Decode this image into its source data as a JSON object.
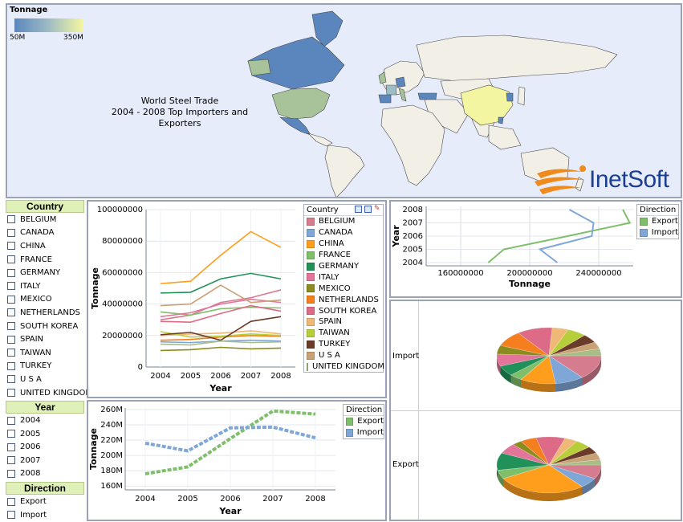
{
  "map": {
    "legend_title": "Tonnage",
    "legend_min": "50M",
    "legend_max": "350M",
    "title_lines": [
      "World Steel Trade",
      "2004 - 2008 Top Importers and",
      "Exporters"
    ],
    "brand": "InetSoft",
    "colors": {
      "ocean": "#e6ecfa",
      "land": "#f2efe6",
      "low": "#5b86bd",
      "mid": "#9ebcc5",
      "high": "#f4f5a0"
    }
  },
  "filters": {
    "country": {
      "title": "Country",
      "items": [
        "BELGIUM",
        "CANADA",
        "CHINA",
        "FRANCE",
        "GERMANY",
        "ITALY",
        "MEXICO",
        "NETHERLANDS",
        "SOUTH KOREA",
        "SPAIN",
        "TAIWAN",
        "TURKEY",
        "U S A",
        "UNITED KINGDOM"
      ]
    },
    "year": {
      "title": "Year",
      "items": [
        "2004",
        "2005",
        "2006",
        "2007",
        "2008"
      ]
    },
    "direction": {
      "title": "Direction",
      "items": [
        "Export",
        "Import"
      ]
    }
  },
  "chart_data": [
    {
      "id": "country-tonnage",
      "type": "line",
      "xlabel": "Year",
      "ylabel": "Tonnage",
      "x": [
        "2004",
        "2005",
        "2006",
        "2007",
        "2008"
      ],
      "ylim": [
        0,
        100000000
      ],
      "yticks": [
        "0",
        "20000000",
        "40000000",
        "60000000",
        "80000000",
        "100000000"
      ],
      "legend_title": "Country",
      "legend_position": "right",
      "series": [
        {
          "name": "BELGIUM",
          "color": "#d57c8f",
          "values": [
            30000000,
            33000000,
            41000000,
            44000000,
            49000000
          ]
        },
        {
          "name": "CANADA",
          "color": "#7ea6d6",
          "values": [
            16000000,
            15500000,
            16500000,
            17000000,
            16500000
          ]
        },
        {
          "name": "CHINA",
          "color": "#ff9d1c",
          "values": [
            53000000,
            54500000,
            71000000,
            86000000,
            76000000
          ]
        },
        {
          "name": "FRANCE",
          "color": "#7fbf6a",
          "values": [
            35000000,
            33000000,
            37000000,
            38000000,
            37500000
          ]
        },
        {
          "name": "GERMANY",
          "color": "#21915a",
          "values": [
            47000000,
            47500000,
            56000000,
            59500000,
            56000000
          ]
        },
        {
          "name": "ITALY",
          "color": "#e3749a",
          "values": [
            32000000,
            34500000,
            40000000,
            43000000,
            41000000
          ]
        },
        {
          "name": "MEXICO",
          "color": "#8b8b1e",
          "values": [
            10500000,
            11000000,
            12500000,
            11500000,
            12000000
          ]
        },
        {
          "name": "NETHERLANDS",
          "color": "#f57f1e",
          "values": [
            17000000,
            17500000,
            19000000,
            20000000,
            19500000
          ]
        },
        {
          "name": "SOUTH KOREA",
          "color": "#dd6b87",
          "values": [
            29000000,
            28500000,
            34000000,
            39000000,
            35500000
          ]
        },
        {
          "name": "SPAIN",
          "color": "#f0b876",
          "values": [
            20000000,
            21000000,
            21500000,
            23000000,
            21000000
          ]
        },
        {
          "name": "TAIWAN",
          "color": "#b7ce3b",
          "values": [
            22500000,
            19000000,
            19500000,
            21000000,
            20000000
          ]
        },
        {
          "name": "TURKEY",
          "color": "#6b3b2a",
          "values": [
            20500000,
            22000000,
            17000000,
            29000000,
            32000000
          ]
        },
        {
          "name": "U S A",
          "color": "#c8a275",
          "values": [
            39000000,
            40000000,
            52000000,
            41000000,
            42500000
          ]
        },
        {
          "name": "UNITED KINGDOM",
          "color": "#a8be86",
          "values": [
            14500000,
            14000000,
            16500000,
            15500000,
            16000000
          ]
        }
      ]
    },
    {
      "id": "direction-tonnage",
      "type": "line",
      "xlabel": "Year",
      "ylabel": "Tonnage",
      "x": [
        "2004",
        "2005",
        "2006",
        "2007",
        "2008"
      ],
      "ylim": [
        155000000,
        262000000
      ],
      "yticks": [
        "160M",
        "180M",
        "200M",
        "220M",
        "240M",
        "260M"
      ],
      "legend_title": "Direction",
      "legend_position": "right",
      "series": [
        {
          "name": "Export",
          "color": "#7fbf6a",
          "values": [
            176000000,
            185000000,
            222000000,
            258000000,
            254000000
          ]
        },
        {
          "name": "Import",
          "color": "#7ea6d6",
          "values": [
            216000000,
            206000000,
            236000000,
            237000000,
            223000000
          ]
        }
      ]
    },
    {
      "id": "year-vs-tonnage",
      "type": "line",
      "xlabel": "Tonnage",
      "ylabel": "Year",
      "xlim": [
        140000000,
        260000000
      ],
      "xticks": [
        "160000000",
        "200000000",
        "240000000"
      ],
      "yticks": [
        "2004",
        "2005",
        "2006",
        "2007",
        "2008"
      ],
      "legend_title": "Direction",
      "legend_position": "right",
      "series": [
        {
          "name": "Export",
          "color": "#7fbf6a",
          "points": [
            [
              176000000,
              2004
            ],
            [
              185000000,
              2005
            ],
            [
              222000000,
              2006
            ],
            [
              258000000,
              2007
            ],
            [
              254000000,
              2008
            ]
          ]
        },
        {
          "name": "Import",
          "color": "#7ea6d6",
          "points": [
            [
              216000000,
              2004
            ],
            [
              206000000,
              2005
            ],
            [
              236000000,
              2006
            ],
            [
              237000000,
              2007
            ],
            [
              223000000,
              2008
            ]
          ]
        }
      ]
    },
    {
      "id": "direction-pies",
      "type": "pie",
      "rows": [
        {
          "label": "Import",
          "values": [
            14,
            9,
            11,
            4,
            6,
            7,
            5,
            9,
            11,
            5,
            6,
            5,
            4,
            4
          ],
          "colors": [
            "#d57c8f",
            "#7ea6d6",
            "#ff9d1c",
            "#7fbf6a",
            "#21915a",
            "#e3749a",
            "#8b8b1e",
            "#f57f1e",
            "#dd6b87",
            "#f0b876",
            "#b7ce3b",
            "#6b3b2a",
            "#c8a275",
            "#a8be86"
          ]
        },
        {
          "label": "Export",
          "values": [
            8,
            6,
            28,
            5,
            10,
            6,
            3,
            5,
            9,
            4,
            5,
            4,
            4,
            3
          ],
          "colors": [
            "#d57c8f",
            "#7ea6d6",
            "#ff9d1c",
            "#7fbf6a",
            "#21915a",
            "#e3749a",
            "#8b8b1e",
            "#f57f1e",
            "#dd6b87",
            "#f0b876",
            "#b7ce3b",
            "#6b3b2a",
            "#c8a275",
            "#a8be86"
          ]
        }
      ]
    }
  ]
}
